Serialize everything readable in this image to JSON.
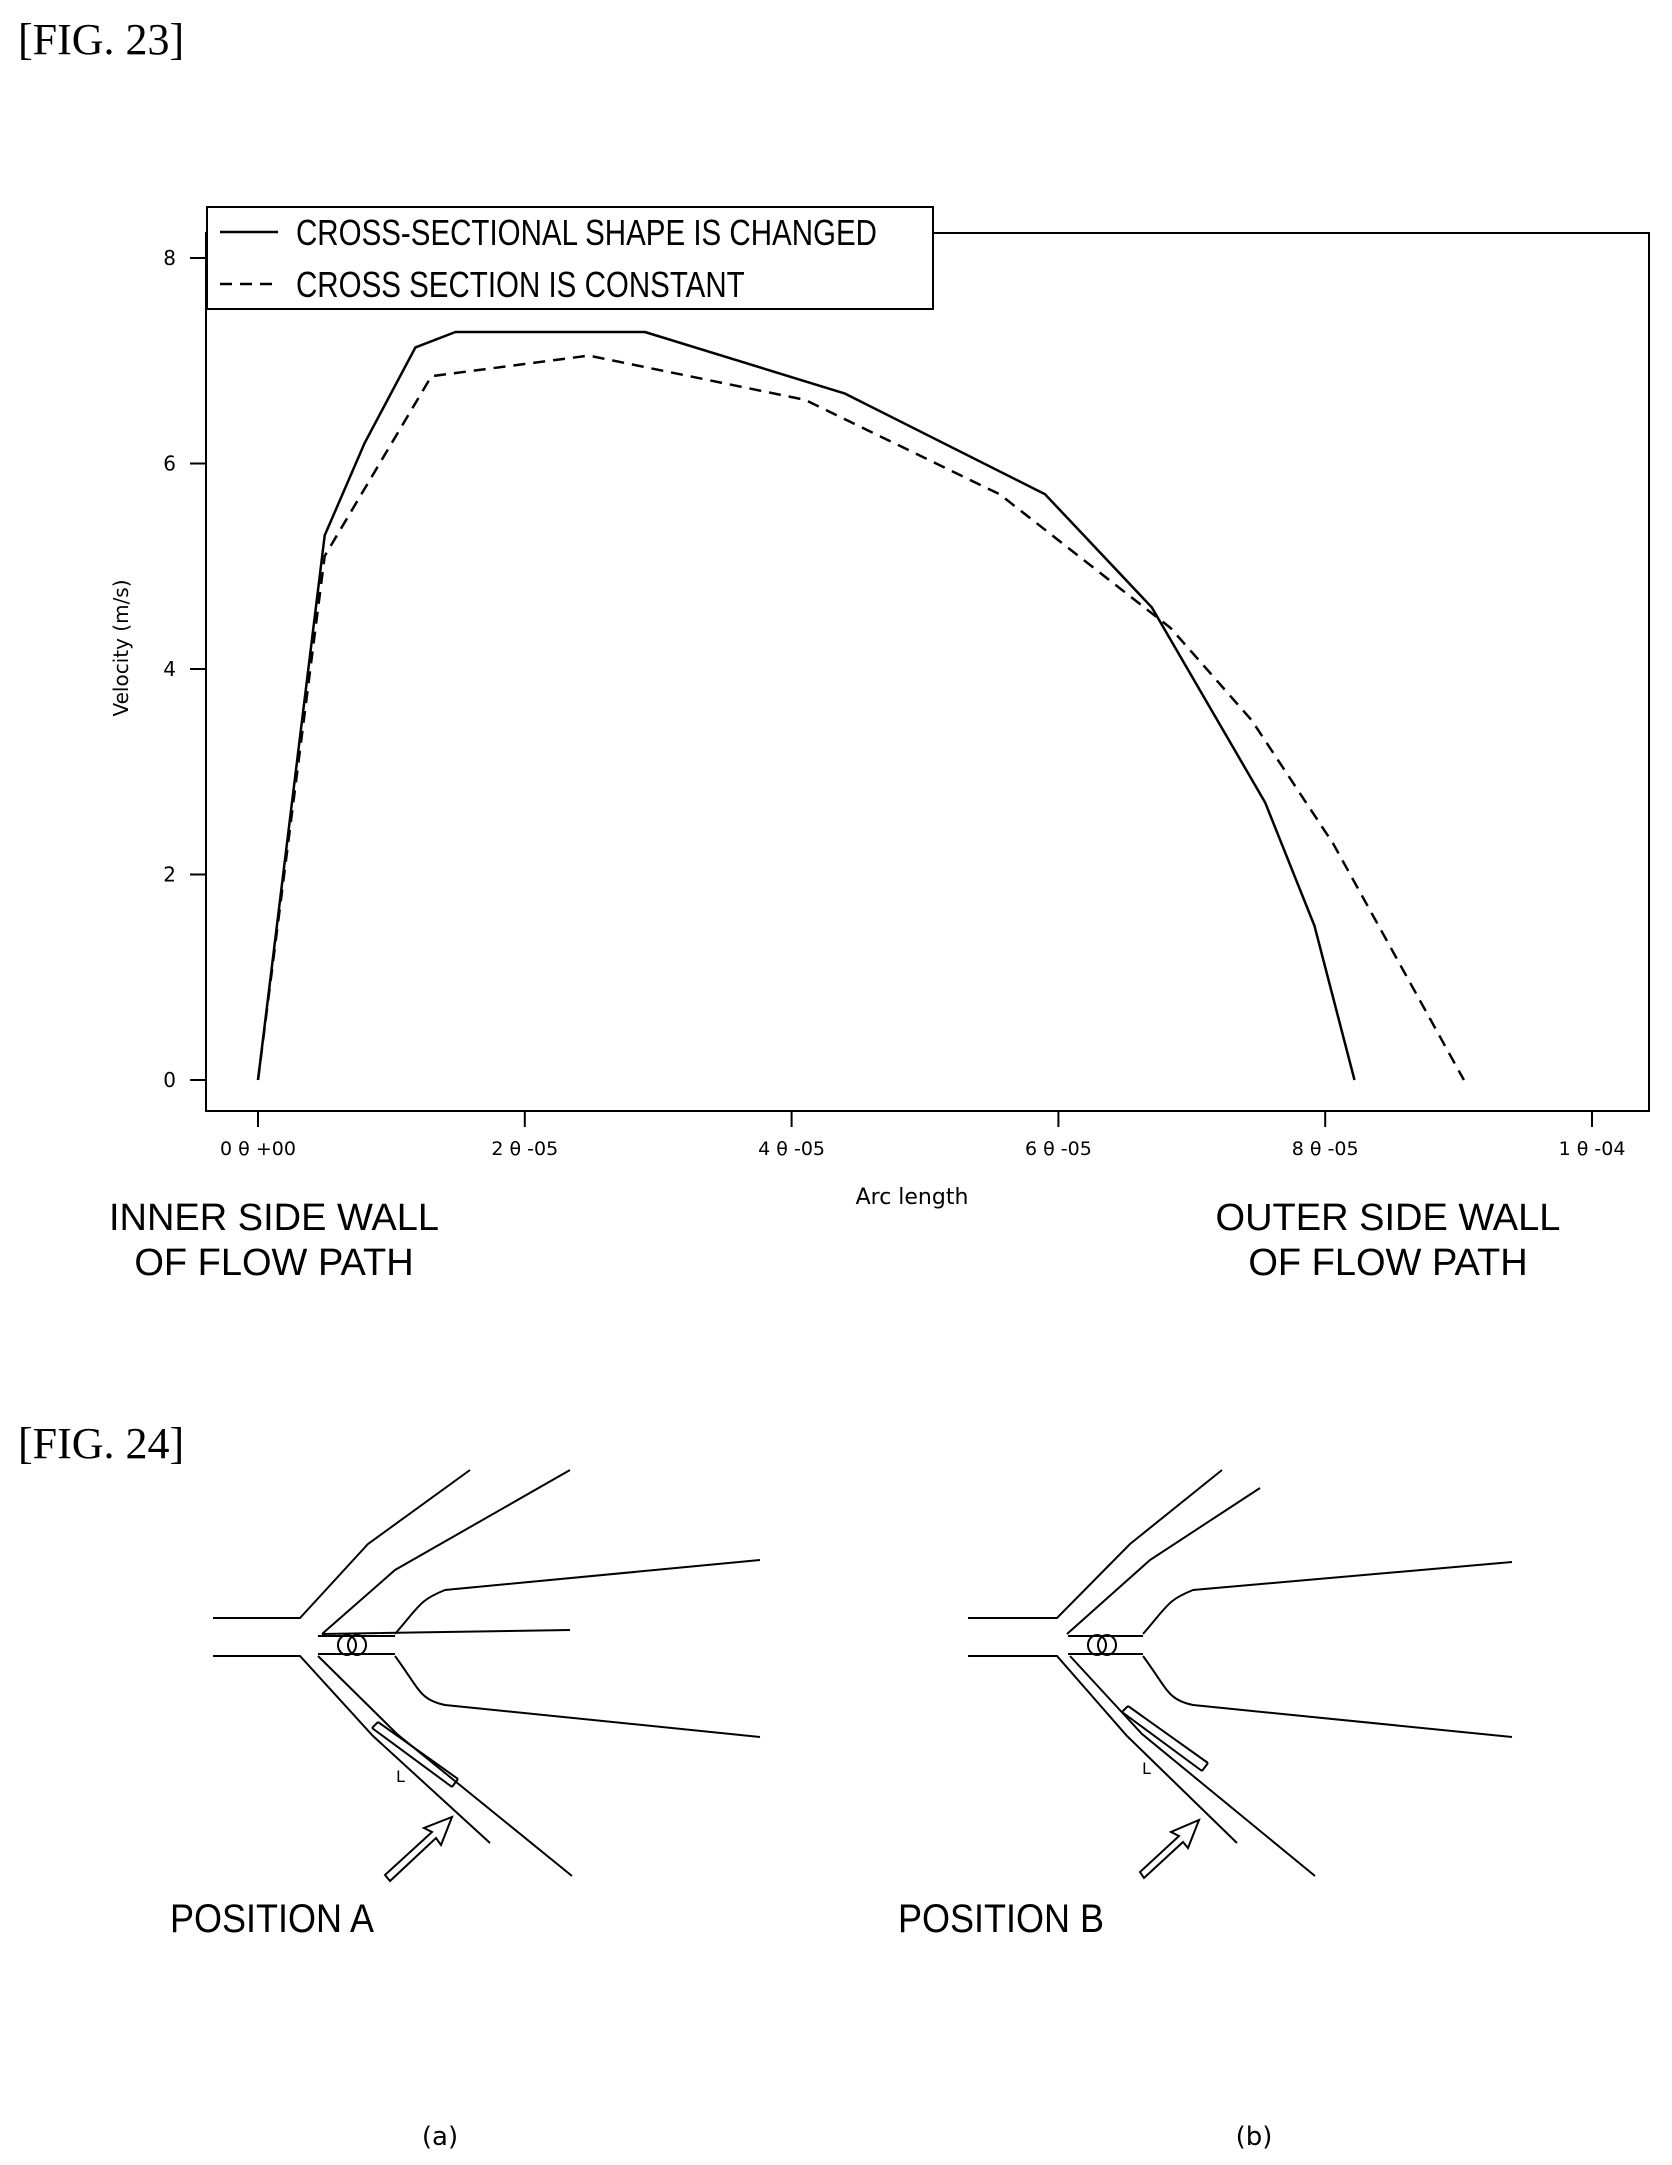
{
  "fig23": {
    "label": "[FIG. 23]",
    "side_labels": {
      "left_line1": "INNER SIDE WALL",
      "left_line2": "OF FLOW PATH",
      "right_line1": "OUTER SIDE WALL",
      "right_line2": "OF FLOW PATH"
    }
  },
  "fig24": {
    "label": "[FIG. 24]",
    "panel_a": {
      "position_label": "POSITION A",
      "marker": "L",
      "caption": "(a)"
    },
    "panel_b": {
      "position_label": "POSITION B",
      "marker": "L",
      "caption": "(b)"
    }
  },
  "chart_data": {
    "type": "line",
    "xlabel": "Arc length",
    "ylabel": "Velocity (m/s)",
    "xlim": [
      0,
      0.0001
    ],
    "ylim": [
      0,
      8
    ],
    "xticks": [
      0,
      2e-05,
      4e-05,
      6e-05,
      8e-05,
      0.0001
    ],
    "xtick_labels": [
      "0 θ +00",
      "2 θ -05",
      "4 θ -05",
      "6 θ -05",
      "8 θ -05",
      "1 θ -04"
    ],
    "yticks": [
      0,
      2,
      4,
      6,
      8
    ],
    "ytick_labels": [
      "0",
      "2",
      "4",
      "6",
      "8"
    ],
    "grid": false,
    "legend_position": "top-left",
    "series": [
      {
        "name": "CROSS-SECTIONAL SHAPE IS CHANGED",
        "style": "solid",
        "x": [
          0,
          5e-06,
          8e-06,
          1.18e-05,
          1.48e-05,
          2.9e-05,
          4.4e-05,
          5.9e-05,
          6.7e-05,
          7.55e-05,
          7.92e-05,
          8.22e-05
        ],
        "y": [
          0,
          5.3,
          6.2,
          7.13,
          7.28,
          7.28,
          6.68,
          5.7,
          4.6,
          2.7,
          1.5,
          0
        ]
      },
      {
        "name": "CROSS SECTION IS CONSTANT",
        "style": "dashed",
        "x": [
          0,
          5e-06,
          1.3e-05,
          2.48e-05,
          4.1e-05,
          5.56e-05,
          6.84e-05,
          7.45e-05,
          8.06e-05,
          9.04e-05
        ],
        "y": [
          0,
          5.1,
          6.85,
          7.05,
          6.62,
          5.7,
          4.4,
          3.5,
          2.3,
          0
        ]
      }
    ]
  }
}
